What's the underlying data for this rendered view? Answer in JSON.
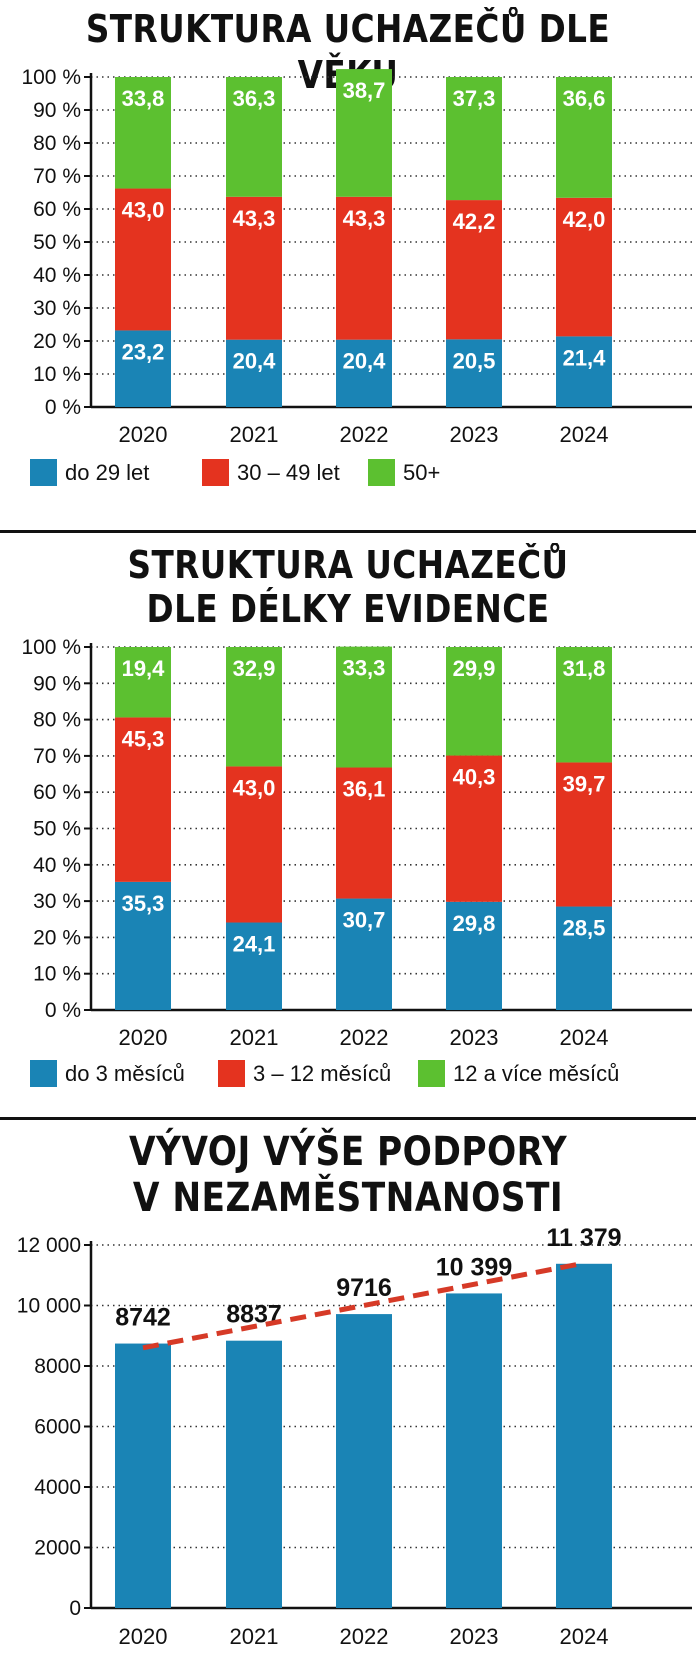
{
  "colors": {
    "blue": "#1a84b5",
    "red": "#e4331f",
    "green": "#5cc030",
    "trend": "#d63a27"
  },
  "chart_data": [
    {
      "type": "bar",
      "stacked": true,
      "title": "STRUKTURA UCHAZEČŮ DLE VĚKU",
      "categories": [
        "2020",
        "2021",
        "2022",
        "2023",
        "2024"
      ],
      "y_ticks": [
        "0 %",
        "10 %",
        "20 %",
        "30 %",
        "40 %",
        "50 %",
        "60 %",
        "70 %",
        "80 %",
        "90 %",
        "100 %"
      ],
      "ylim": [
        0,
        100
      ],
      "grid": "dotted horizontal",
      "legend_position": "bottom",
      "series": [
        {
          "name": "do 29 let",
          "color": "blue",
          "values": [
            23.2,
            20.4,
            20.4,
            20.5,
            21.4
          ],
          "labels": [
            "23,2",
            "20,4",
            "20,4",
            "20,5",
            "21,4"
          ]
        },
        {
          "name": "30 – 49 let",
          "color": "red",
          "values": [
            43.0,
            43.3,
            43.3,
            42.2,
            42.0
          ],
          "labels": [
            "43,0",
            "43,3",
            "43,3",
            "42,2",
            "42,0"
          ]
        },
        {
          "name": "50+",
          "color": "green",
          "values": [
            33.8,
            36.3,
            38.7,
            37.3,
            36.6
          ],
          "labels": [
            "33,8",
            "36,3",
            "38,7",
            "37,3",
            "36,6"
          ]
        }
      ]
    },
    {
      "type": "bar",
      "stacked": true,
      "title_lines": [
        "STRUKTURA UCHAZEČŮ",
        "DLE DÉLKY EVIDENCE"
      ],
      "categories": [
        "2020",
        "2021",
        "2022",
        "2023",
        "2024"
      ],
      "y_ticks": [
        "0 %",
        "10 %",
        "20 %",
        "30 %",
        "40 %",
        "50 %",
        "60 %",
        "70 %",
        "80 %",
        "90 %",
        "100 %"
      ],
      "ylim": [
        0,
        100
      ],
      "grid": "dotted horizontal",
      "legend_position": "bottom",
      "series": [
        {
          "name": "do 3 měsíců",
          "color": "blue",
          "values": [
            35.3,
            24.1,
            30.7,
            29.8,
            28.5
          ],
          "labels": [
            "35,3",
            "24,1",
            "30,7",
            "29,8",
            "28,5"
          ]
        },
        {
          "name": "3 – 12 měsíců",
          "color": "red",
          "values": [
            45.3,
            43.0,
            36.1,
            40.3,
            39.7
          ],
          "labels": [
            "45,3",
            "43,0",
            "36,1",
            "40,3",
            "39,7"
          ]
        },
        {
          "name": "12 a více měsíců",
          "color": "green",
          "values": [
            19.4,
            32.9,
            33.3,
            29.9,
            31.8
          ],
          "labels": [
            "19,4",
            "32,9",
            "33,3",
            "29,9",
            "31,8"
          ]
        }
      ]
    },
    {
      "type": "bar",
      "title_lines": [
        "VÝVOJ VÝŠE PODPORY",
        "V NEZAMĚSTNANOSTI"
      ],
      "categories": [
        "2020",
        "2021",
        "2022",
        "2023",
        "2024"
      ],
      "values": [
        8742,
        8837,
        9716,
        10399,
        11379
      ],
      "value_labels": [
        "8742",
        "8837",
        "9716",
        "10 399",
        "11 379"
      ],
      "y_ticks": [
        "0",
        "2000",
        "4000",
        "6000",
        "8000",
        "10 000",
        "12 000"
      ],
      "ylim": [
        0,
        12000
      ],
      "grid": "dotted horizontal",
      "color": "blue",
      "trend_line": {
        "style": "dashed",
        "color": "trend",
        "from": 8600,
        "to": 11400
      }
    }
  ]
}
